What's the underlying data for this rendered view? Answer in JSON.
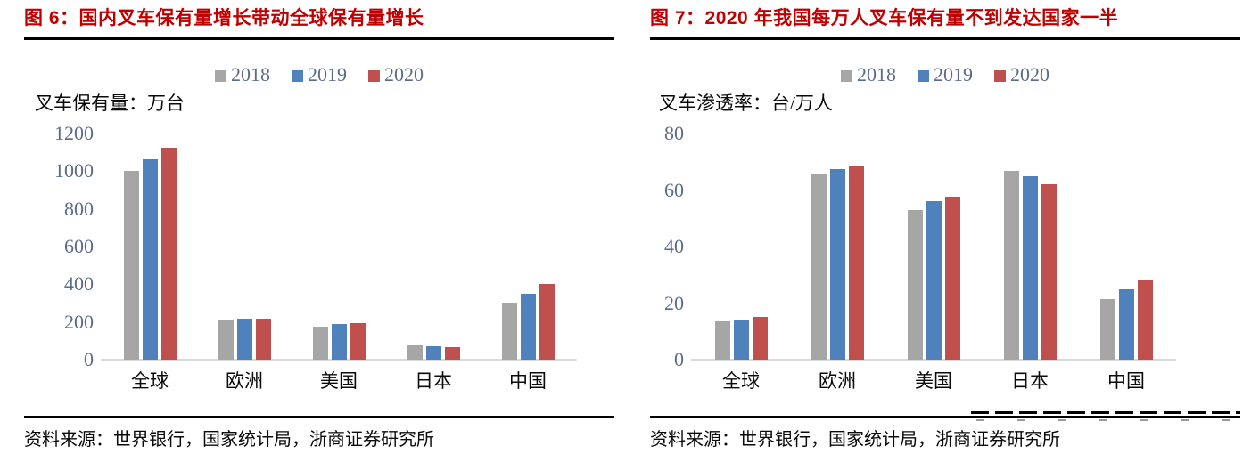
{
  "chart_data": [
    {
      "type": "bar",
      "title": "图 6：国内叉车保有量增长带动全球保有量增长",
      "ylabel": "叉车保有量：万台",
      "categories": [
        "全球",
        "欧洲",
        "美国",
        "日本",
        "中国"
      ],
      "series": [
        {
          "name": "2018",
          "values": [
            1000,
            210,
            176,
            74,
            300
          ]
        },
        {
          "name": "2019",
          "values": [
            1065,
            216,
            188,
            71,
            350
          ]
        },
        {
          "name": "2020",
          "values": [
            1125,
            216,
            194,
            68,
            400
          ]
        }
      ],
      "ylim": [
        0,
        1200
      ],
      "yticks": [
        0,
        200,
        400,
        600,
        800,
        1000,
        1200
      ],
      "legend": [
        "2018",
        "2019",
        "2020"
      ],
      "legend_position": "top",
      "grid": false,
      "source": "资料来源：世界银行，国家统计局，浙商证券研究所"
    },
    {
      "type": "bar",
      "title": "图 7：2020 年我国每万人叉车保有量不到发达国家一半",
      "ylabel": "叉车渗透率：台/万人",
      "categories": [
        "全球",
        "欧洲",
        "美国",
        "日本",
        "中国"
      ],
      "series": [
        {
          "name": "2018",
          "values": [
            13.5,
            65.5,
            53,
            66.8,
            21.5
          ]
        },
        {
          "name": "2019",
          "values": [
            14.2,
            67.3,
            56,
            65,
            25
          ]
        },
        {
          "name": "2020",
          "values": [
            15,
            68.3,
            57.5,
            62,
            28.5
          ]
        }
      ],
      "ylim": [
        0,
        80
      ],
      "yticks": [
        0,
        20,
        40,
        60,
        80
      ],
      "legend": [
        "2018",
        "2019",
        "2020"
      ],
      "legend_position": "top",
      "grid": false,
      "source": "资料来源：世界银行，国家统计局，浙商证券研究所"
    }
  ],
  "colors": {
    "title": "#c00000",
    "series": {
      "2018": "#a6a6a6",
      "2019": "#4f81bd",
      "2020": "#c0504d"
    },
    "axis_line": "#d9d9d9",
    "tick_text": "#5b6b88",
    "rule": "#000000",
    "text": "#0a0a0a"
  }
}
